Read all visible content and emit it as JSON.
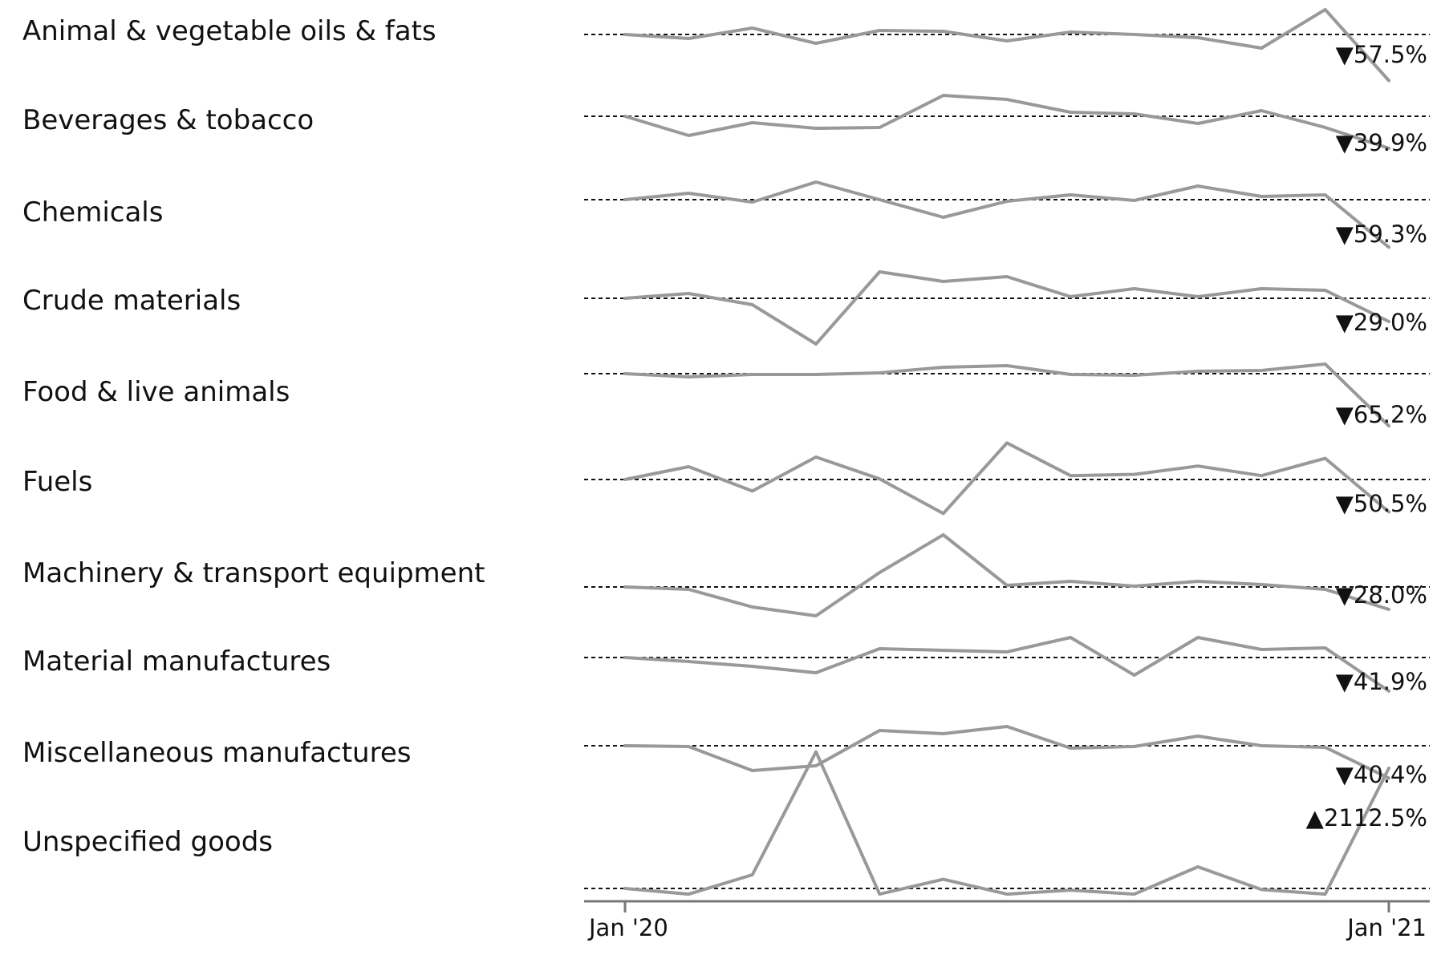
{
  "chart_data": {
    "type": "line",
    "subtype": "small-multiples sparklines",
    "x": [
      "2020-01",
      "2020-02",
      "2020-03",
      "2020-04",
      "2020-05",
      "2020-06",
      "2020-07",
      "2020-08",
      "2020-09",
      "2020-10",
      "2020-11",
      "2020-12",
      "2021-01"
    ],
    "x_tick_labels": [
      "Jan '20",
      "Jan '21"
    ],
    "baseline_value": 100,
    "series_color": "#999999",
    "baseline_color": "#111111",
    "up_marker": "▲",
    "down_marker": "▼",
    "series": [
      {
        "name": "Animal & vegetable oils & fats",
        "values": [
          100,
          95,
          108,
          89,
          105,
          104,
          92,
          103,
          100,
          96,
          83,
          131,
          42.5
        ],
        "change_label": "57.5%",
        "direction": "down"
      },
      {
        "name": "Beverages & tobacco",
        "values": [
          100,
          76,
          92,
          85,
          86,
          126,
          121,
          105,
          103,
          91,
          107,
          86,
          60.1
        ],
        "change_label": "39.9%",
        "direction": "down"
      },
      {
        "name": "Chemicals",
        "values": [
          100,
          108,
          97,
          122,
          100,
          78,
          98,
          106,
          99,
          117,
          104,
          106,
          40.7
        ],
        "change_label": "59.3%",
        "direction": "down"
      },
      {
        "name": "Crude materials",
        "values": [
          100,
          106,
          92,
          43,
          133,
          121,
          127,
          102,
          112,
          102,
          112,
          110,
          71.0
        ],
        "change_label": "29.0%",
        "direction": "down"
      },
      {
        "name": "Food & live animals",
        "values": [
          100,
          96,
          99,
          99,
          101,
          108,
          110,
          99,
          98,
          103,
          104,
          112,
          34.8
        ],
        "change_label": "65.2%",
        "direction": "down"
      },
      {
        "name": "Fuels",
        "values": [
          100,
          120,
          82,
          135,
          101,
          47,
          157,
          106,
          108,
          121,
          106,
          133,
          49.5
        ],
        "change_label": "50.5%",
        "direction": "down"
      },
      {
        "name": "Machinery & transport equipment",
        "values": [
          100,
          97,
          75,
          64,
          118,
          165,
          102,
          107,
          101,
          107,
          103,
          97,
          72.0
        ],
        "change_label": "28.0%",
        "direction": "down"
      },
      {
        "name": "Material manufactures",
        "values": [
          100,
          95,
          89,
          81,
          111,
          109,
          107,
          125,
          78,
          125,
          110,
          112,
          58.1
        ],
        "change_label": "41.9%",
        "direction": "down"
      },
      {
        "name": "Miscellaneous manufactures",
        "values": [
          100,
          99,
          69,
          75,
          119,
          115,
          124,
          97,
          99,
          112,
          100,
          98,
          59.6
        ],
        "change_label": "40.4%",
        "direction": "down"
      },
      {
        "name": "Unspecified goods",
        "values": [
          100,
          0,
          340,
          2500,
          0,
          260,
          0,
          70,
          0,
          480,
          80,
          0,
          2212.5
        ],
        "change_label": "2112.5%",
        "direction": "up"
      }
    ]
  }
}
